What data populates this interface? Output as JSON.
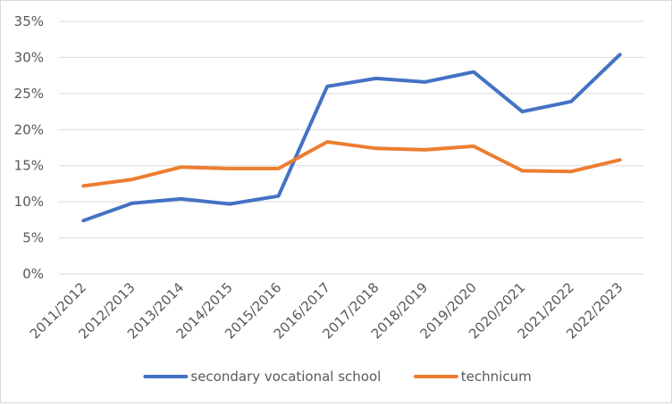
{
  "chart_data": {
    "type": "line",
    "categories": [
      "2011/2012",
      "2012/2013",
      "2013/2014",
      "2014/2015",
      "2015/2016",
      "2016/2017",
      "2017/2018",
      "2018/2019",
      "2019/2020",
      "2020/2021",
      "2021/2022",
      "2022/2023"
    ],
    "series": [
      {
        "name": "secondary vocational school",
        "color": "#4472c4",
        "values": [
          7.4,
          9.8,
          10.4,
          9.7,
          10.8,
          26.0,
          27.1,
          26.6,
          28.0,
          22.5,
          23.9,
          30.4
        ]
      },
      {
        "name": "technicum",
        "color": "#ed7d31",
        "values": [
          12.2,
          13.1,
          14.8,
          14.6,
          14.6,
          18.3,
          17.4,
          17.2,
          17.7,
          14.3,
          14.2,
          15.8
        ]
      }
    ],
    "yticks": [
      "0%",
      "5%",
      "10%",
      "15%",
      "20%",
      "25%",
      "30%",
      "35%"
    ],
    "ylim": [
      0,
      35
    ],
    "grid": true,
    "gridline_color": "#d9d9d9",
    "legend_position": "bottom"
  }
}
